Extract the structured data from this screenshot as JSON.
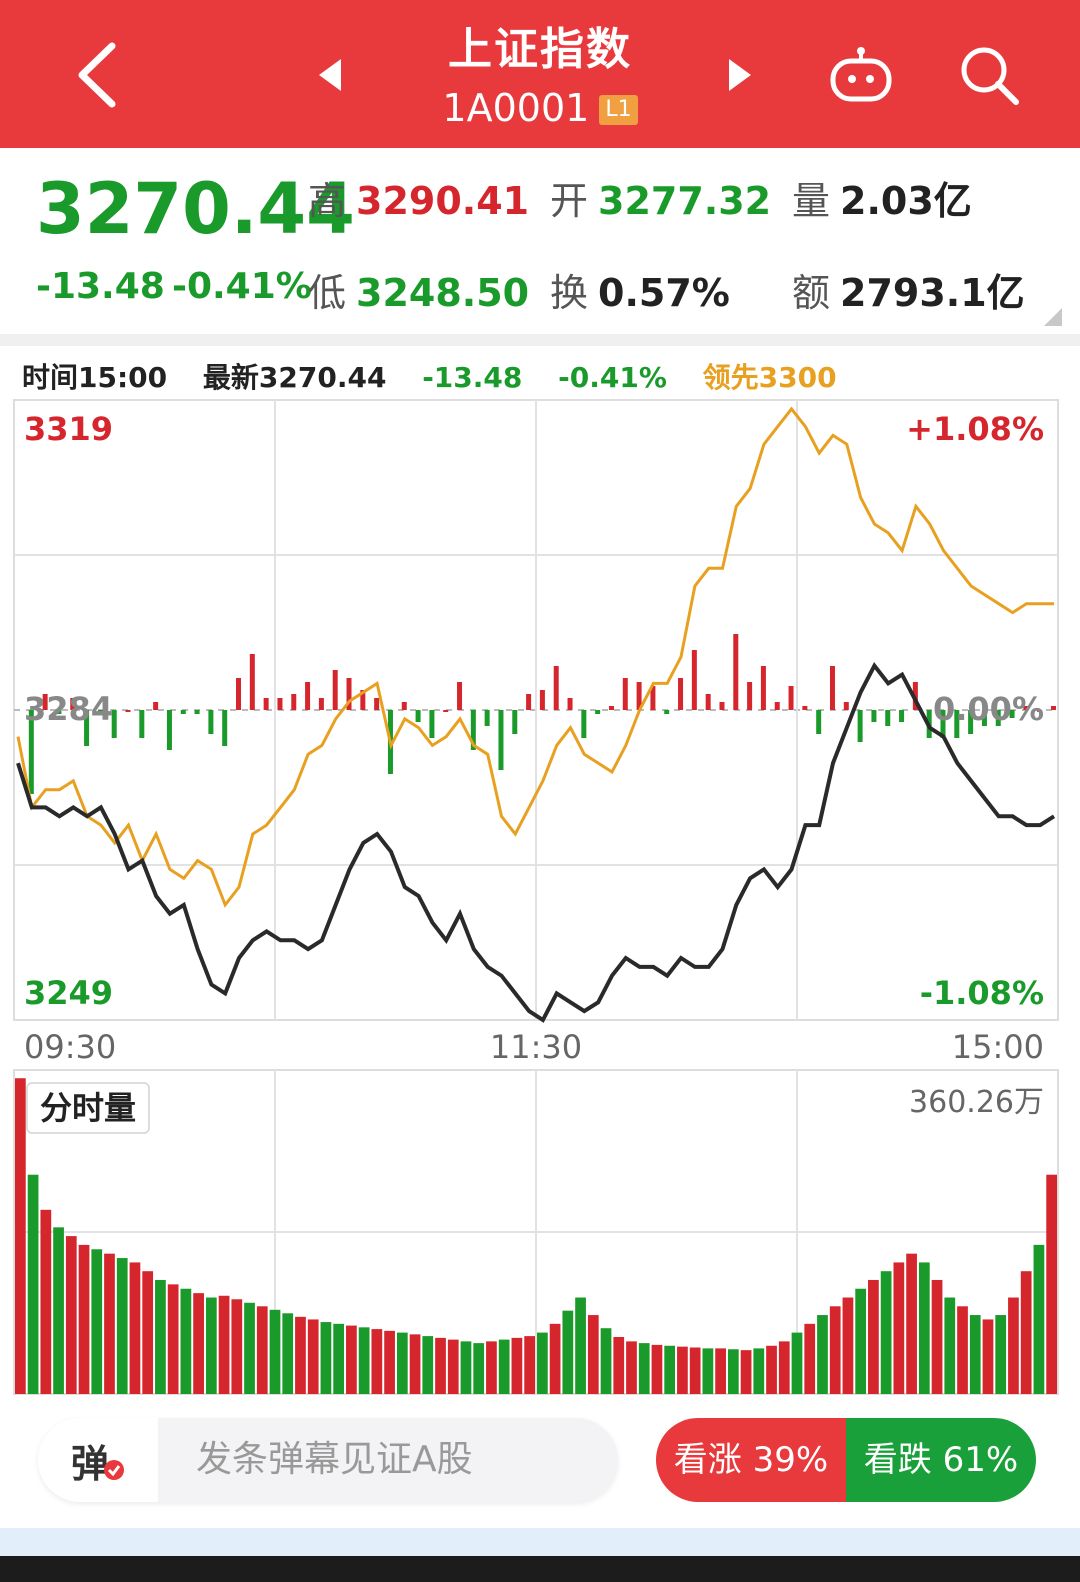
{
  "header": {
    "title": "上证指数",
    "code": "1A0001",
    "level_badge": "L1",
    "icons": [
      "back-arrow-icon",
      "prev-triangle-icon",
      "next-triangle-icon",
      "robot-icon",
      "search-icon"
    ]
  },
  "quote": {
    "price": "3270.44",
    "change": "-13.48",
    "change_pct": "-0.41%",
    "high_label": "高",
    "high": "3290.41",
    "low_label": "低",
    "low": "3248.50",
    "open_label": "开",
    "open": "3277.32",
    "turnover_label": "换",
    "turnover": "0.57%",
    "volume_label": "量",
    "volume": "2.03亿",
    "amount_label": "额",
    "amount": "2793.1亿"
  },
  "info_line": {
    "time": "时间15:00",
    "latest": "最新3270.44",
    "change": "-13.48",
    "change_pct": "-0.41%",
    "lead": "领先3300"
  },
  "chart_labels": {
    "y_top": "3319",
    "y_mid": "3284",
    "y_bottom": "3249",
    "pct_top": "+1.08%",
    "pct_mid": "0.00%",
    "pct_bottom": "-1.08%",
    "x_start": "09:30",
    "x_mid": "11:30",
    "x_end": "15:00",
    "volume_tag": "分时量",
    "volume_max": "360.26万"
  },
  "chart_data": [
    {
      "type": "line",
      "title": "",
      "xlabel": "",
      "ylabel": "",
      "x_ticks": [
        "09:30",
        "11:30",
        "15:00"
      ],
      "ylim": [
        3249,
        3319
      ],
      "y_ticks": [
        "3319",
        "3284",
        "3249"
      ],
      "reference": 3284,
      "series": [
        {
          "values": [
            3278,
            3273,
            3273,
            3272,
            3273,
            3272,
            3273,
            3270,
            3266,
            3267,
            3263,
            3261,
            3262,
            3257,
            3253,
            3252,
            3256,
            3258,
            3259,
            3258,
            3258,
            3257,
            3258,
            3262,
            3266,
            3269,
            3270,
            3268,
            3264,
            3263,
            3260,
            3258,
            3261,
            3257,
            3255,
            3254,
            3252,
            3250,
            3249,
            3252,
            3251,
            3250,
            3251,
            3254,
            3256,
            3255,
            3255,
            3254,
            3256,
            3255,
            3255,
            3257,
            3262,
            3265,
            3266,
            3264,
            3266,
            3271,
            3271,
            3278,
            3282,
            3286,
            3289,
            3287,
            3288,
            3285,
            3282,
            3281,
            3278,
            3276,
            3274,
            3272,
            3272,
            3271,
            3271,
            3272
          ]
        },
        {
          "values": [
            3281,
            3273,
            3275,
            3275,
            3276,
            3272,
            3271,
            3269,
            3271,
            3267,
            3270,
            3266,
            3265,
            3267,
            3266,
            3262,
            3264,
            3270,
            3271,
            3273,
            3275,
            3279,
            3280,
            3283,
            3285,
            3286,
            3287,
            3280,
            3283,
            3282,
            3280,
            3281,
            3283,
            3280,
            3279,
            3272,
            3270,
            3273,
            3276,
            3280,
            3282,
            3279,
            3278,
            3277,
            3280,
            3284,
            3287,
            3287,
            3290,
            3298,
            3300,
            3300,
            3307,
            3309,
            3314,
            3316,
            3318,
            3316,
            3313,
            3315,
            3314,
            3308,
            3305,
            3304,
            3302,
            3307,
            3305,
            3302,
            3300,
            3298,
            3297,
            3296,
            3295,
            3296,
            3296,
            3296
          ]
        }
      ]
    },
    {
      "type": "bar",
      "title": "",
      "xlabel": "",
      "ylabel": "",
      "ylim": [
        0,
        360.26
      ],
      "unit": "万",
      "values": [
        360,
        250,
        210,
        190,
        180,
        170,
        165,
        160,
        155,
        150,
        140,
        130,
        125,
        120,
        115,
        110,
        112,
        108,
        104,
        100,
        96,
        92,
        88,
        85,
        82,
        80,
        78,
        76,
        74,
        72,
        70,
        68,
        66,
        64,
        62,
        60,
        58,
        60,
        62,
        64,
        66,
        70,
        80,
        95,
        110,
        90,
        75,
        65,
        60,
        58,
        56,
        55,
        54,
        53,
        52,
        52,
        51,
        50,
        52,
        55,
        60,
        70,
        80,
        90,
        100,
        110,
        120,
        130,
        140,
        150,
        160,
        150,
        130,
        110,
        100,
        90,
        85,
        90,
        110,
        140,
        170,
        250
      ],
      "colors": [
        "up",
        "down",
        "up",
        "down",
        "up",
        "up",
        "down",
        "up",
        "down",
        "up",
        "up",
        "down",
        "up",
        "down",
        "up",
        "down",
        "up",
        "up",
        "down",
        "up",
        "down",
        "down",
        "up",
        "up",
        "down",
        "down",
        "up",
        "down",
        "up",
        "up",
        "down",
        "up",
        "down",
        "up",
        "up",
        "down",
        "down",
        "up",
        "down",
        "up",
        "up",
        "down",
        "up",
        "down",
        "down",
        "up",
        "down",
        "up",
        "up",
        "down",
        "up",
        "down",
        "up",
        "up",
        "down",
        "up",
        "down",
        "up",
        "down",
        "up",
        "up",
        "down",
        "up",
        "down",
        "up",
        "up",
        "down",
        "up",
        "down",
        "up",
        "up",
        "down",
        "up",
        "down",
        "up",
        "down",
        "up",
        "down",
        "up",
        "up",
        "down",
        "up"
      ]
    }
  ],
  "colors": {
    "red": "#d5262d",
    "green": "#1a9a2a",
    "price_line": "#2a2a2a",
    "lead_line": "#e8a020",
    "header_bg": "#e8393c"
  },
  "bottom": {
    "danmu_label": "弹",
    "danmu_placeholder": "发条弹幕见证A股",
    "up_label": "看涨 39%",
    "down_label": "看跌 61%"
  }
}
